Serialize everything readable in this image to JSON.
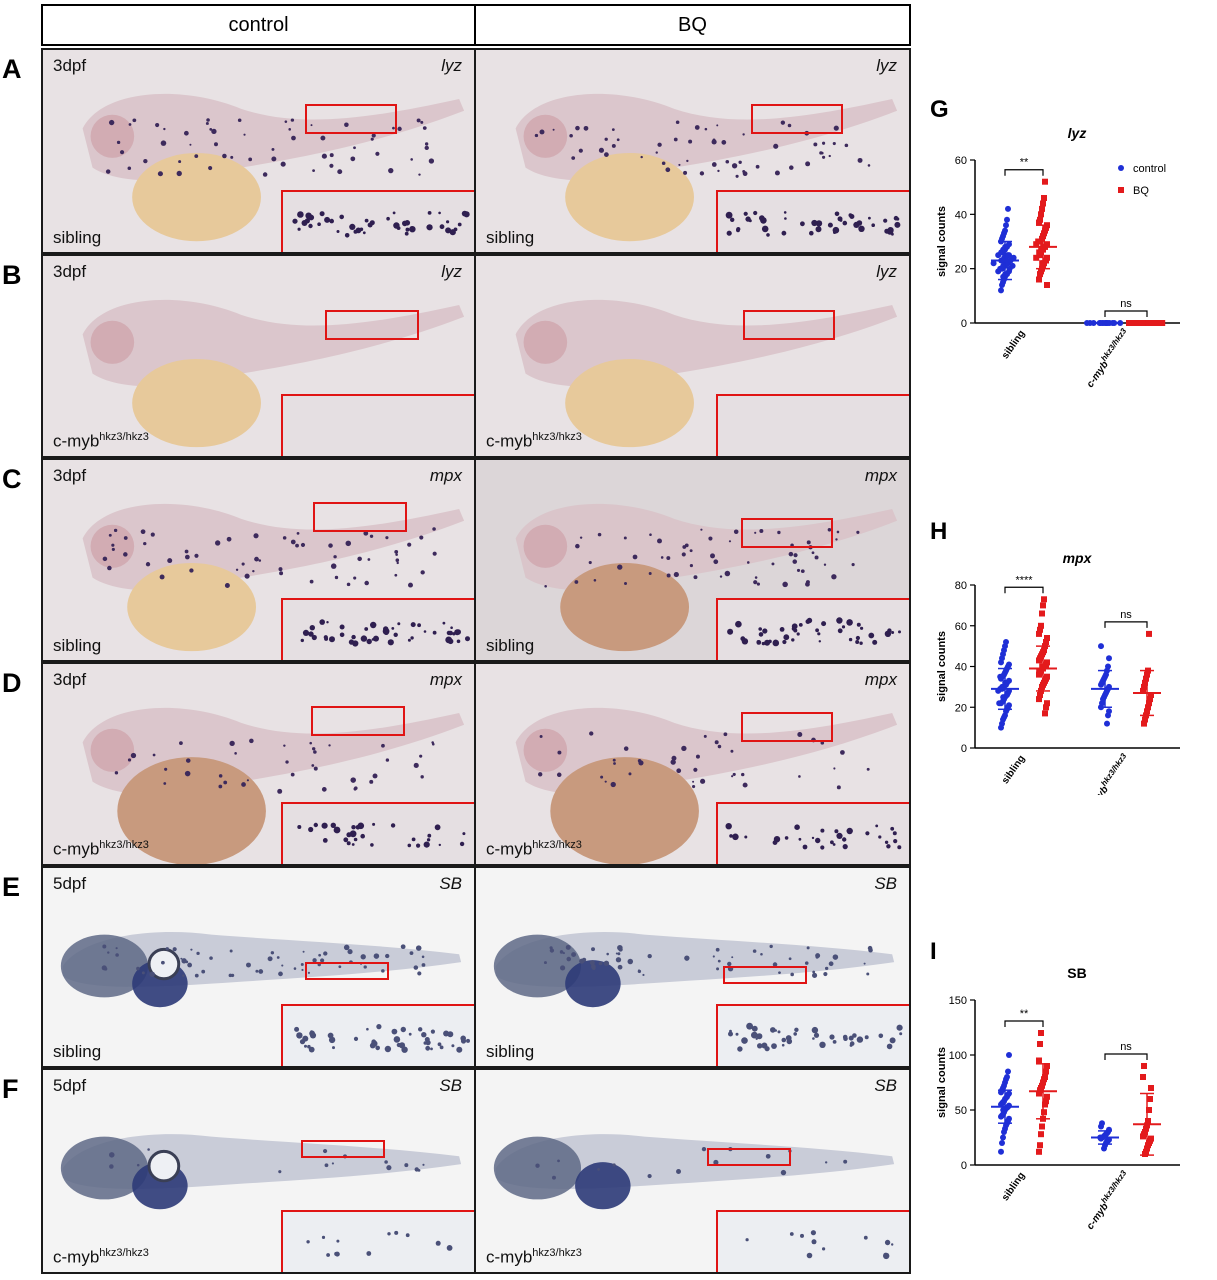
{
  "figure": {
    "column_headers": [
      "control",
      "BQ"
    ],
    "rows": [
      {
        "letter": "A",
        "stage": "3dpf",
        "probe": "lyz",
        "genotype": "sibling",
        "genotype_sup": "",
        "theme": "pink",
        "signal": "high"
      },
      {
        "letter": "B",
        "stage": "3dpf",
        "probe": "lyz",
        "genotype": "c-myb",
        "genotype_sup": "hkz3/hkz3",
        "theme": "pink",
        "signal": "none"
      },
      {
        "letter": "C",
        "stage": "3dpf",
        "probe": "mpx",
        "genotype": "sibling",
        "genotype_sup": "",
        "theme": "pink",
        "signal": "high"
      },
      {
        "letter": "D",
        "stage": "3dpf",
        "probe": "mpx",
        "genotype": "c-myb",
        "genotype_sup": "hkz3/hkz3",
        "theme": "pink",
        "signal": "mid"
      },
      {
        "letter": "E",
        "stage": "5dpf",
        "probe": "SB",
        "genotype": "sibling",
        "genotype_sup": "",
        "theme": "blue",
        "signal": "high"
      },
      {
        "letter": "F",
        "stage": "5dpf",
        "probe": "SB",
        "genotype": "c-myb",
        "genotype_sup": "hkz3/hkz3",
        "theme": "blue",
        "signal": "low"
      }
    ],
    "colors": {
      "control": "#1f2fd6",
      "BQ": "#e31a1c",
      "roi_box": "#e01414"
    }
  },
  "chart_data": [
    {
      "panel": "G",
      "type": "scatter",
      "title": "lyz",
      "ylabel": "signal counts",
      "ylim": [
        0,
        60
      ],
      "yticks": [
        0,
        20,
        40,
        60
      ],
      "groups": [
        "sibling",
        "c-myb"
      ],
      "group_sup": [
        "",
        "hkz3/hkz3"
      ],
      "legend": [
        "control",
        "BQ"
      ],
      "series": [
        {
          "name": "control",
          "group": "sibling",
          "mean": 23,
          "sd": 7,
          "values": [
            12,
            14,
            15,
            16,
            17,
            17,
            18,
            18,
            19,
            19,
            20,
            20,
            20,
            21,
            21,
            21,
            22,
            22,
            22,
            22,
            23,
            23,
            23,
            24,
            24,
            24,
            25,
            25,
            25,
            26,
            26,
            27,
            27,
            28,
            28,
            29,
            30,
            31,
            32,
            33,
            34,
            36,
            38,
            42
          ]
        },
        {
          "name": "BQ",
          "group": "sibling",
          "mean": 28,
          "sd": 8,
          "values": [
            14,
            16,
            18,
            19,
            20,
            21,
            22,
            22,
            23,
            24,
            24,
            25,
            26,
            26,
            27,
            27,
            28,
            28,
            29,
            29,
            30,
            30,
            31,
            32,
            33,
            34,
            35,
            36,
            37,
            38,
            40,
            42,
            44,
            46,
            52
          ]
        },
        {
          "name": "control",
          "group": "c-myb",
          "mean": 0,
          "sd": 0,
          "values": [
            0,
            0,
            0,
            0,
            0,
            0,
            0,
            0,
            0,
            0,
            0,
            0,
            0,
            0,
            0
          ]
        },
        {
          "name": "BQ",
          "group": "c-myb",
          "mean": 0,
          "sd": 0,
          "values": [
            0,
            0,
            0,
            0,
            0,
            0,
            0,
            0,
            0,
            0,
            0,
            0,
            0,
            0,
            0
          ]
        }
      ],
      "significance": [
        {
          "group": "sibling",
          "label": "**"
        },
        {
          "group": "c-myb",
          "label": "ns"
        }
      ]
    },
    {
      "panel": "H",
      "type": "scatter",
      "title": "mpx",
      "ylabel": "signal counts",
      "ylim": [
        0,
        80
      ],
      "yticks": [
        0,
        20,
        40,
        60,
        80
      ],
      "groups": [
        "sibling",
        "c-myb"
      ],
      "group_sup": [
        "",
        "hkz3/hkz3"
      ],
      "legend": [],
      "series": [
        {
          "name": "control",
          "group": "sibling",
          "mean": 29,
          "sd": 10,
          "values": [
            10,
            12,
            14,
            15,
            16,
            18,
            19,
            20,
            21,
            22,
            22,
            23,
            24,
            25,
            25,
            26,
            27,
            28,
            28,
            29,
            29,
            30,
            30,
            31,
            32,
            32,
            33,
            34,
            35,
            35,
            36,
            37,
            38,
            39,
            40,
            41,
            42,
            44,
            46,
            48,
            50,
            52
          ]
        },
        {
          "name": "BQ",
          "group": "sibling",
          "mean": 39,
          "sd": 11,
          "values": [
            17,
            20,
            22,
            24,
            26,
            28,
            30,
            31,
            32,
            33,
            34,
            35,
            36,
            37,
            38,
            38,
            39,
            40,
            40,
            41,
            42,
            43,
            44,
            45,
            46,
            47,
            48,
            50,
            52,
            54,
            56,
            58,
            60,
            66,
            70,
            73
          ]
        },
        {
          "name": "control",
          "group": "c-myb",
          "mean": 29,
          "sd": 9,
          "values": [
            12,
            16,
            18,
            20,
            22,
            24,
            25,
            26,
            27,
            28,
            29,
            30,
            31,
            32,
            33,
            34,
            35,
            36,
            38,
            40,
            44,
            50
          ]
        },
        {
          "name": "BQ",
          "group": "c-myb",
          "mean": 27,
          "sd": 11,
          "values": [
            12,
            14,
            16,
            18,
            20,
            22,
            24,
            26,
            28,
            30,
            32,
            34,
            36,
            38,
            56
          ]
        }
      ],
      "significance": [
        {
          "group": "sibling",
          "label": "****"
        },
        {
          "group": "c-myb",
          "label": "ns"
        }
      ]
    },
    {
      "panel": "I",
      "type": "scatter",
      "title": "SB",
      "ylabel": "signal counts",
      "ylim": [
        0,
        150
      ],
      "yticks": [
        0,
        50,
        100,
        150
      ],
      "groups": [
        "sibling",
        "c-myb"
      ],
      "group_sup": [
        "",
        "hkz3/hkz3"
      ],
      "legend": [],
      "series": [
        {
          "name": "control",
          "group": "sibling",
          "mean": 53,
          "sd": 15,
          "values": [
            12,
            20,
            25,
            30,
            33,
            36,
            38,
            40,
            42,
            44,
            45,
            46,
            48,
            50,
            50,
            52,
            53,
            54,
            55,
            56,
            57,
            58,
            60,
            61,
            62,
            64,
            65,
            66,
            68,
            70,
            72,
            75,
            78,
            80,
            85,
            100
          ]
        },
        {
          "name": "BQ",
          "group": "sibling",
          "mean": 67,
          "sd": 25,
          "values": [
            12,
            18,
            28,
            35,
            42,
            48,
            55,
            58,
            62,
            65,
            68,
            70,
            72,
            75,
            78,
            80,
            85,
            90,
            95,
            110,
            120
          ]
        },
        {
          "name": "control",
          "group": "c-myb",
          "mean": 25,
          "sd": 6,
          "values": [
            15,
            18,
            20,
            21,
            22,
            23,
            24,
            25,
            25,
            26,
            27,
            28,
            29,
            30,
            32,
            35,
            38
          ]
        },
        {
          "name": "BQ",
          "group": "c-myb",
          "mean": 37,
          "sd": 28,
          "values": [
            10,
            12,
            15,
            18,
            20,
            22,
            24,
            26,
            28,
            30,
            33,
            36,
            40,
            50,
            60,
            70,
            80,
            90
          ]
        }
      ],
      "significance": [
        {
          "group": "sibling",
          "label": "**"
        },
        {
          "group": "c-myb",
          "label": "ns"
        }
      ]
    }
  ]
}
